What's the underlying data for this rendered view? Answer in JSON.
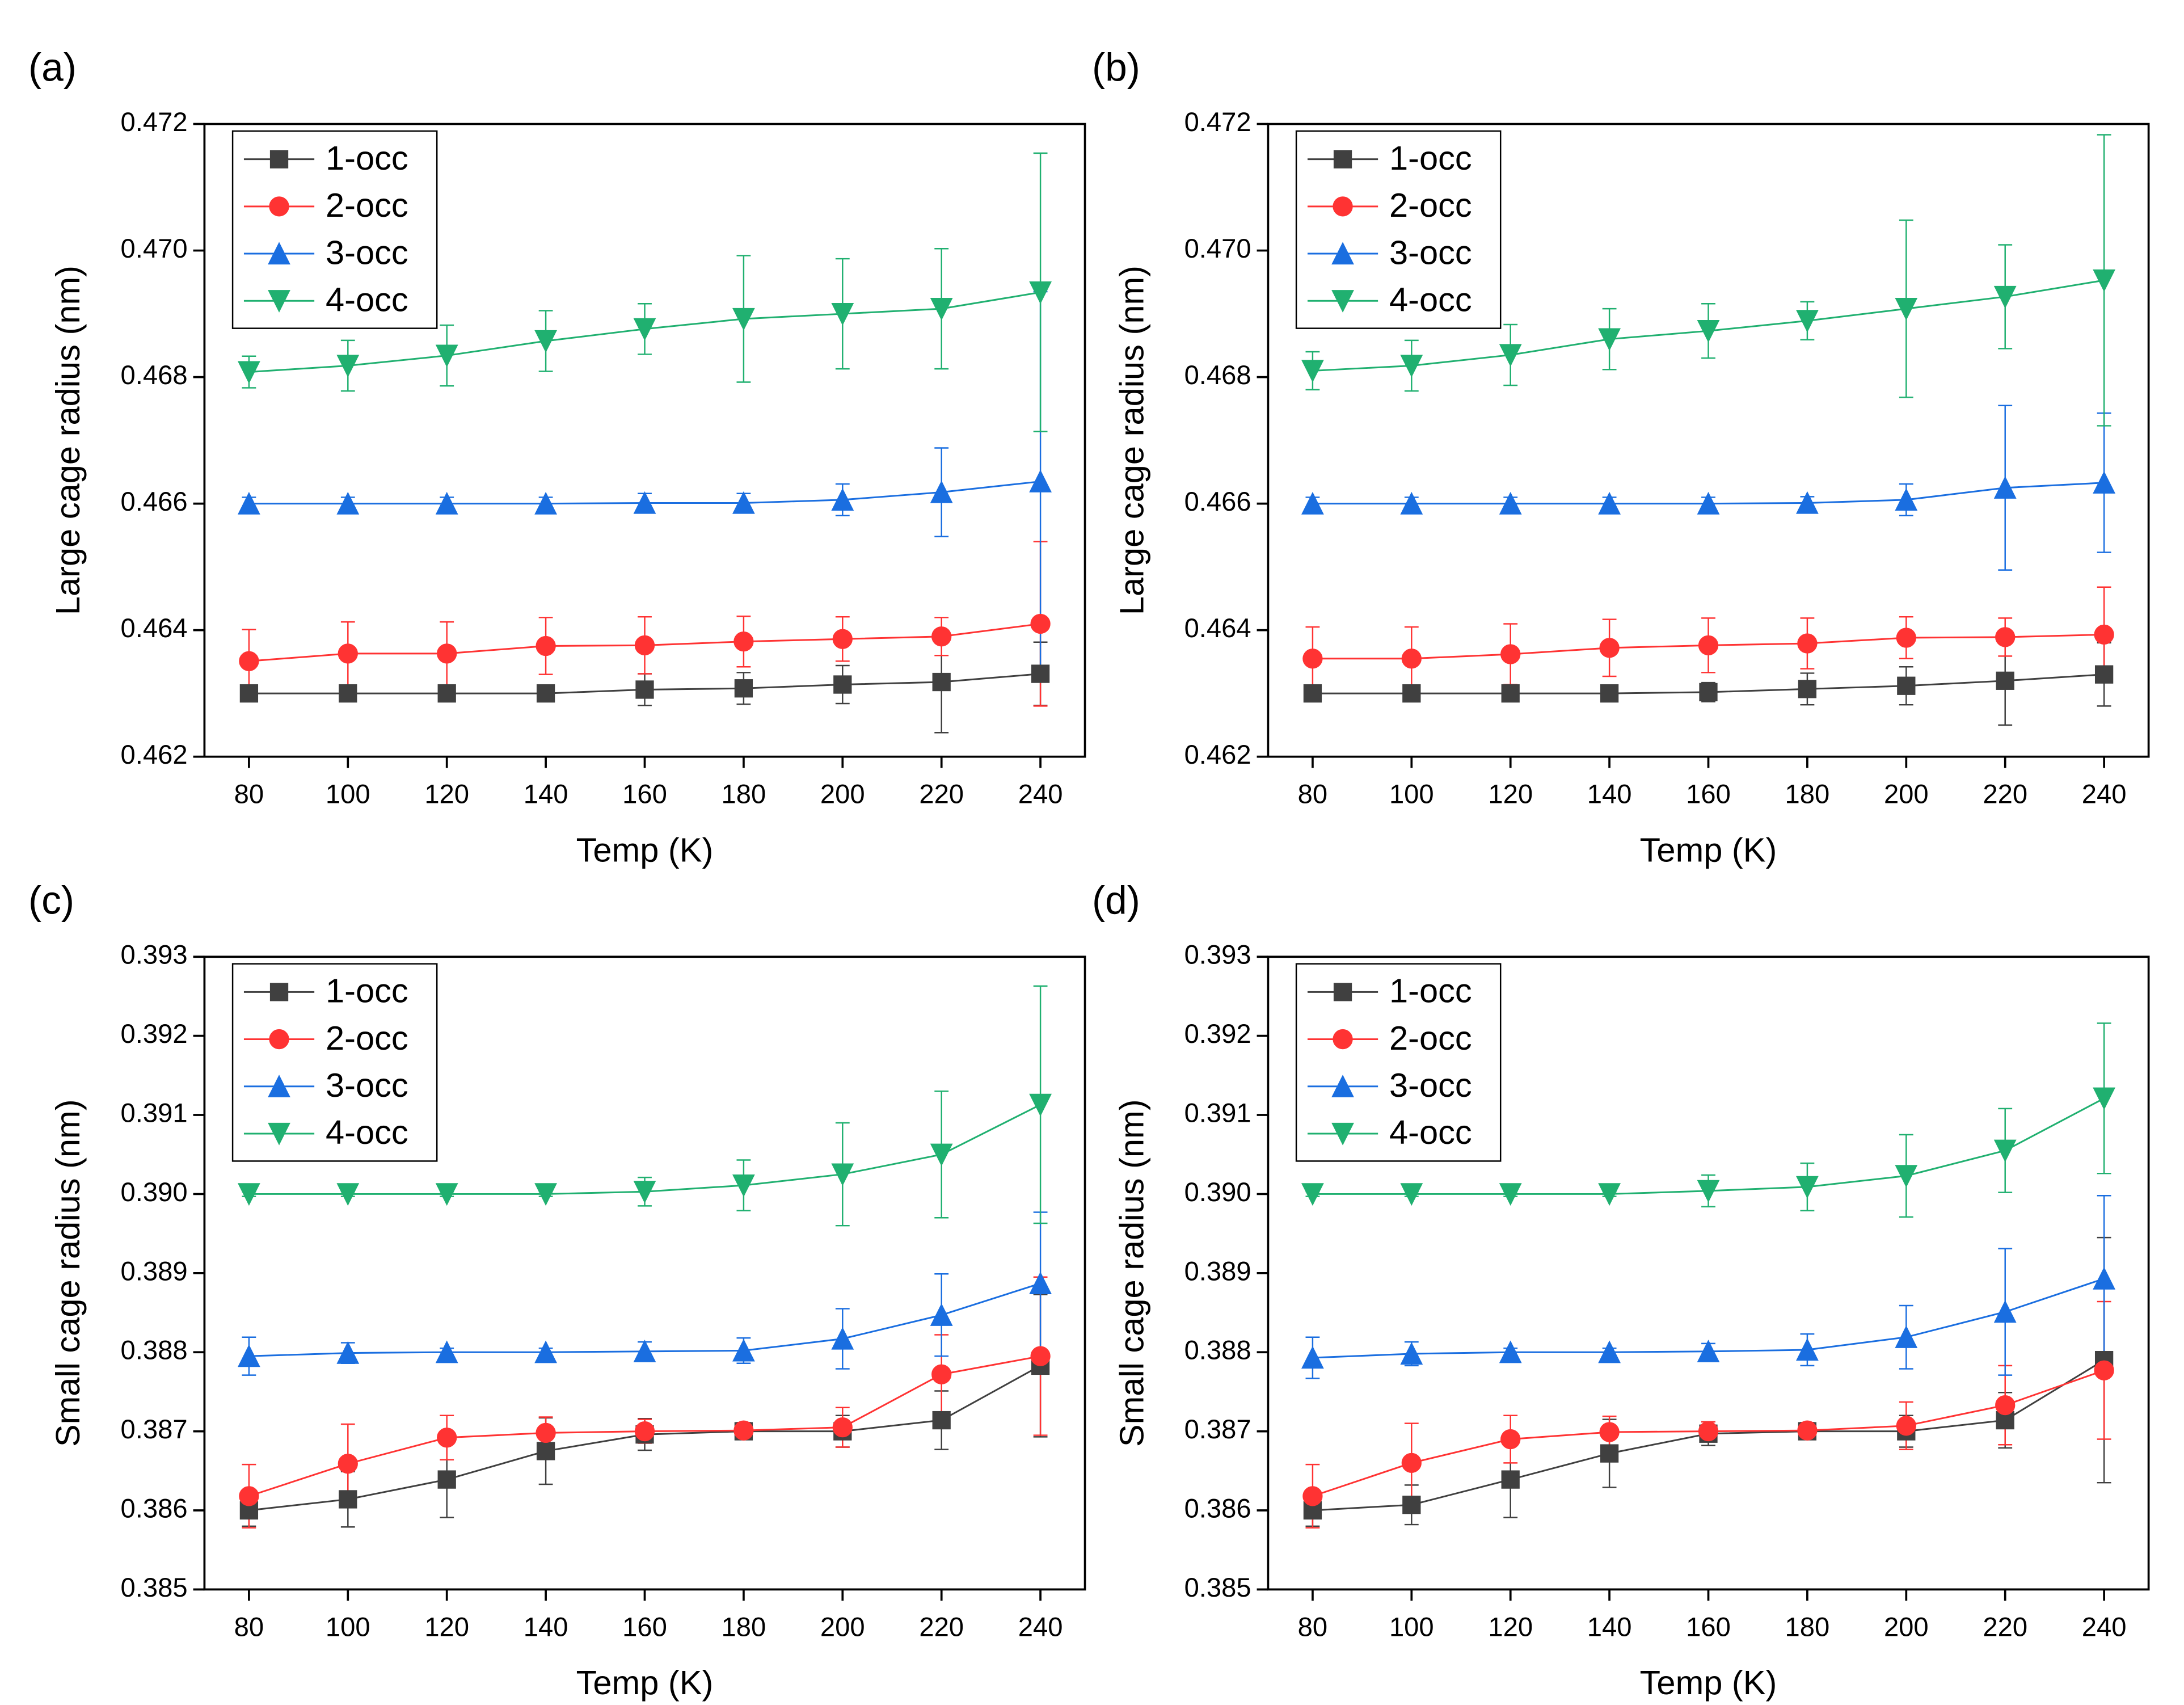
{
  "chart_data": [
    {
      "type": "line",
      "panel_label": "(a)",
      "x_label": "Temp (K)",
      "y_label": "Large cage radius (nm)",
      "x": [
        80,
        100,
        120,
        140,
        160,
        180,
        200,
        220,
        240
      ],
      "xlim": [
        71,
        249
      ],
      "xticks": [
        80,
        100,
        120,
        140,
        160,
        180,
        200,
        220,
        240
      ],
      "ylim": [
        0.462,
        0.472
      ],
      "yticks": [
        0.462,
        0.464,
        0.466,
        0.468,
        {
          "value": 0.47,
          "label": "0.470"
        },
        0.472
      ],
      "legend": "upper left",
      "series": [
        {
          "name": "1-occ",
          "color": "#404040",
          "marker": "square",
          "values": [
            0.463,
            0.463,
            0.463,
            0.463,
            0.46306,
            0.46308,
            0.46314,
            0.46318,
            0.46331
          ],
          "errors": [
            0.0001,
            0.0001,
            0.0001,
            0.0001,
            0.00025,
            0.00025,
            0.0003,
            0.0008,
            0.0005
          ]
        },
        {
          "name": "2-occ",
          "color": "#ff3333",
          "marker": "circle",
          "values": [
            0.46351,
            0.46363,
            0.46363,
            0.46375,
            0.46376,
            0.46382,
            0.46386,
            0.4639,
            0.4641
          ],
          "errors": [
            0.0005,
            0.0005,
            0.0005,
            0.00045,
            0.00045,
            0.0004,
            0.00035,
            0.0003,
            0.0013
          ]
        },
        {
          "name": "3-occ",
          "color": "#1a6ee0",
          "marker": "triangle-up",
          "values": [
            0.466,
            0.466,
            0.466,
            0.466,
            0.46601,
            0.46601,
            0.46606,
            0.46618,
            0.46635
          ],
          "errors": [
            0.0001,
            0.0001,
            0.0001,
            0.0001,
            0.00015,
            0.00015,
            0.00025,
            0.0007,
            0.003
          ]
        },
        {
          "name": "4-occ",
          "color": "#20b070",
          "marker": "triangle-down",
          "values": [
            0.46808,
            0.46818,
            0.46834,
            0.46857,
            0.46876,
            0.46892,
            0.469,
            0.46908,
            0.46934
          ],
          "errors": [
            0.00025,
            0.0004,
            0.00048,
            0.00048,
            0.0004,
            0.001,
            0.00087,
            0.00095,
            0.0022
          ]
        }
      ]
    },
    {
      "type": "line",
      "panel_label": "(b)",
      "x_label": "Temp (K)",
      "y_label": "Large cage radius (nm)",
      "x": [
        80,
        100,
        120,
        140,
        160,
        180,
        200,
        220,
        240
      ],
      "xlim": [
        71,
        249
      ],
      "xticks": [
        80,
        100,
        120,
        140,
        160,
        180,
        200,
        220,
        240
      ],
      "ylim": [
        0.462,
        0.472
      ],
      "yticks": [
        0.462,
        0.464,
        0.466,
        0.468,
        {
          "value": 0.47,
          "label": "0.470"
        },
        0.472
      ],
      "legend": "upper left",
      "series": [
        {
          "name": "1-occ",
          "color": "#404040",
          "marker": "square",
          "values": [
            0.463,
            0.463,
            0.463,
            0.463,
            0.46302,
            0.46307,
            0.46312,
            0.4632,
            0.4633
          ],
          "errors": [
            0.0001,
            0.0001,
            0.0001,
            0.0001,
            0.00015,
            0.00025,
            0.0003,
            0.0007,
            0.0005
          ]
        },
        {
          "name": "2-occ",
          "color": "#ff3333",
          "marker": "circle",
          "values": [
            0.46355,
            0.46355,
            0.46362,
            0.46372,
            0.46376,
            0.46379,
            0.46388,
            0.46389,
            0.46393
          ],
          "errors": [
            0.0005,
            0.0005,
            0.00048,
            0.00045,
            0.00043,
            0.0004,
            0.00033,
            0.0003,
            0.00075
          ]
        },
        {
          "name": "3-occ",
          "color": "#1a6ee0",
          "marker": "triangle-up",
          "values": [
            0.466,
            0.466,
            0.466,
            0.466,
            0.466,
            0.46601,
            0.46606,
            0.46625,
            0.46633
          ],
          "errors": [
            0.0001,
            0.0001,
            0.0001,
            0.0001,
            0.0001,
            0.0001,
            0.00025,
            0.0013,
            0.0011
          ]
        },
        {
          "name": "4-occ",
          "color": "#20b070",
          "marker": "triangle-down",
          "values": [
            0.4681,
            0.46818,
            0.46835,
            0.4686,
            0.46873,
            0.46889,
            0.46908,
            0.46927,
            0.46953
          ],
          "errors": [
            0.0003,
            0.0004,
            0.00048,
            0.00048,
            0.00043,
            0.0003,
            0.0014,
            0.00082,
            0.0023
          ]
        }
      ]
    },
    {
      "type": "line",
      "panel_label": "(c)",
      "x_label": "Temp (K)",
      "y_label": "Small cage radius (nm)",
      "x": [
        80,
        100,
        120,
        140,
        160,
        180,
        200,
        220,
        240
      ],
      "xlim": [
        71,
        249
      ],
      "xticks": [
        80,
        100,
        120,
        140,
        160,
        180,
        200,
        220,
        240
      ],
      "ylim": [
        0.385,
        0.393
      ],
      "yticks": [
        0.385,
        0.386,
        0.387,
        0.388,
        0.389,
        {
          "value": 0.39,
          "label": "0.390"
        },
        0.391,
        0.392,
        0.393
      ],
      "legend": "upper left",
      "series": [
        {
          "name": "1-occ",
          "color": "#404040",
          "marker": "square",
          "values": [
            0.386,
            0.38614,
            0.38639,
            0.38675,
            0.38696,
            0.387,
            0.387,
            0.38714,
            0.38783
          ],
          "errors": [
            0.0002,
            0.00035,
            0.00048,
            0.00042,
            0.0002,
            5e-05,
            0.0002,
            0.00037,
            0.0009
          ]
        },
        {
          "name": "2-occ",
          "color": "#ff3333",
          "marker": "circle",
          "values": [
            0.38618,
            0.38659,
            0.38692,
            0.38698,
            0.387,
            0.38701,
            0.38705,
            0.38772,
            0.38795
          ],
          "errors": [
            0.0004,
            0.0005,
            0.00028,
            0.0002,
            0.00015,
            0.0001,
            0.00025,
            0.0005,
            0.001
          ]
        },
        {
          "name": "3-occ",
          "color": "#1a6ee0",
          "marker": "triangle-up",
          "values": [
            0.38795,
            0.38799,
            0.388,
            0.388,
            0.38801,
            0.38802,
            0.38817,
            0.38847,
            0.38887
          ],
          "errors": [
            0.00024,
            0.00013,
            5e-05,
            5e-05,
            0.00012,
            0.00016,
            0.00038,
            0.00052,
            0.0009
          ]
        },
        {
          "name": "4-occ",
          "color": "#20b070",
          "marker": "triangle-down",
          "values": [
            0.39,
            0.39,
            0.39,
            0.39,
            0.39003,
            0.39011,
            0.39025,
            0.3905,
            0.39113
          ],
          "errors": [
            3e-05,
            3e-05,
            3e-05,
            3e-05,
            0.00018,
            0.00032,
            0.00065,
            0.0008,
            0.0015
          ]
        }
      ]
    },
    {
      "type": "line",
      "panel_label": "(d)",
      "x_label": "Temp (K)",
      "y_label": "Small cage radius (nm)",
      "x": [
        80,
        100,
        120,
        140,
        160,
        180,
        200,
        220,
        240
      ],
      "xlim": [
        71,
        249
      ],
      "xticks": [
        80,
        100,
        120,
        140,
        160,
        180,
        200,
        220,
        240
      ],
      "ylim": [
        0.385,
        0.393
      ],
      "yticks": [
        0.385,
        0.386,
        0.387,
        0.388,
        0.389,
        {
          "value": 0.39,
          "label": "0.390"
        },
        0.391,
        0.392,
        0.393
      ],
      "legend": "upper left",
      "series": [
        {
          "name": "1-occ",
          "color": "#404040",
          "marker": "square",
          "values": [
            0.386,
            0.38607,
            0.38639,
            0.38672,
            0.38697,
            0.387,
            0.387,
            0.38714,
            0.3879
          ],
          "errors": [
            0.0002,
            0.00025,
            0.00048,
            0.00043,
            0.00015,
            5e-05,
            0.0002,
            0.00035,
            0.00155
          ]
        },
        {
          "name": "2-occ",
          "color": "#ff3333",
          "marker": "circle",
          "values": [
            0.38618,
            0.3866,
            0.3869,
            0.38699,
            0.387,
            0.38701,
            0.38707,
            0.38733,
            0.38777
          ],
          "errors": [
            0.0004,
            0.0005,
            0.0003,
            0.0002,
            0.00012,
            0.0001,
            0.0003,
            0.0005,
            0.00087
          ]
        },
        {
          "name": "3-occ",
          "color": "#1a6ee0",
          "marker": "triangle-up",
          "values": [
            0.38793,
            0.38798,
            0.388,
            0.388,
            0.38801,
            0.38803,
            0.38819,
            0.38851,
            0.38893
          ],
          "errors": [
            0.00026,
            0.00015,
            5e-05,
            5e-05,
            0.0001,
            0.0002,
            0.0004,
            0.0008,
            0.00105
          ]
        },
        {
          "name": "4-occ",
          "color": "#20b070",
          "marker": "triangle-down",
          "values": [
            0.39,
            0.39,
            0.39,
            0.39,
            0.39004,
            0.39009,
            0.39023,
            0.39055,
            0.39121
          ],
          "errors": [
            3e-05,
            3e-05,
            3e-05,
            3e-05,
            0.0002,
            0.0003,
            0.00052,
            0.00053,
            0.00095
          ]
        }
      ]
    }
  ]
}
